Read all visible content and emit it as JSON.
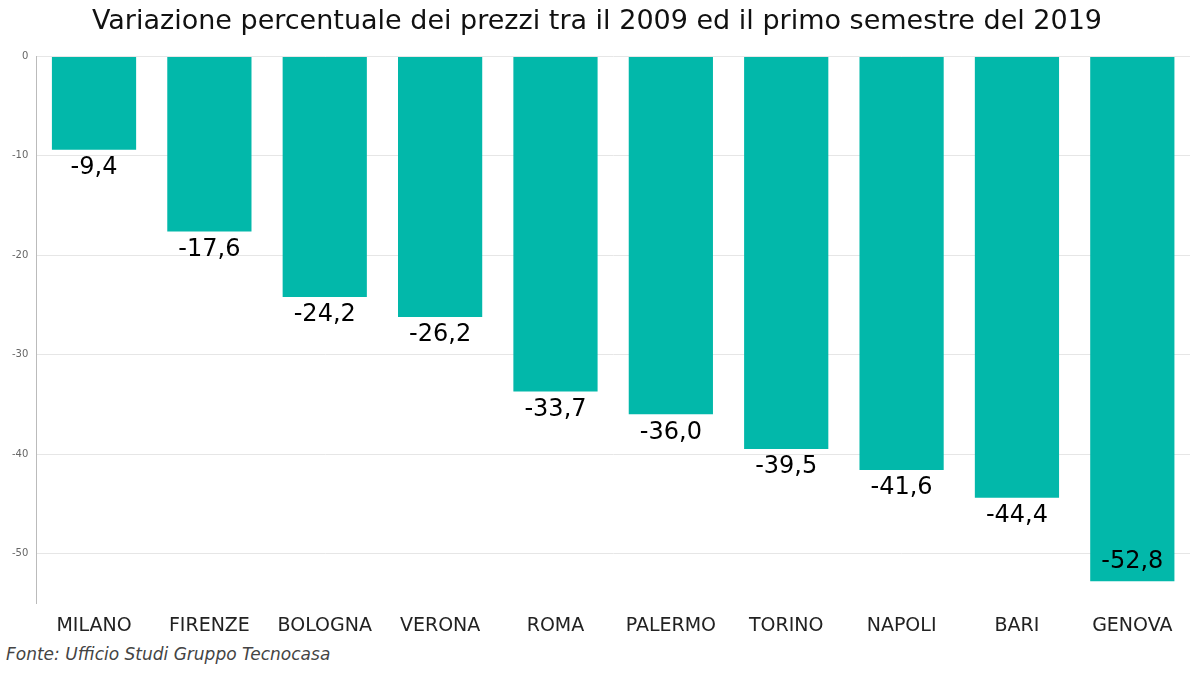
{
  "chart_data": {
    "type": "bar",
    "title": "Variazione percentuale dei prezzi tra il 2009 ed il primo semestre del 2019",
    "categories": [
      "MILANO",
      "FIRENZE",
      "BOLOGNA",
      "VERONA",
      "ROMA",
      "PALERMO",
      "TORINO",
      "NAPOLI",
      "BARI",
      "GENOVA"
    ],
    "values": [
      -9.4,
      -17.6,
      -24.2,
      -26.2,
      -33.7,
      -36.0,
      -39.5,
      -41.6,
      -44.4,
      -52.8
    ],
    "value_labels": [
      "-9,4",
      "-17,6",
      "-24,2",
      "-26,2",
      "-33,7",
      "-36,0",
      "-39,5",
      "-41,6",
      "-44,4",
      "-52,8"
    ],
    "data_labels": true,
    "color": "#02b8aa",
    "ylim": [
      -55,
      0
    ],
    "yticks": [
      -50,
      -40,
      -30,
      -20,
      -10,
      0
    ],
    "grid": true,
    "annotation": "Fonte: Ufficio Studi Gruppo Tecnocasa"
  }
}
